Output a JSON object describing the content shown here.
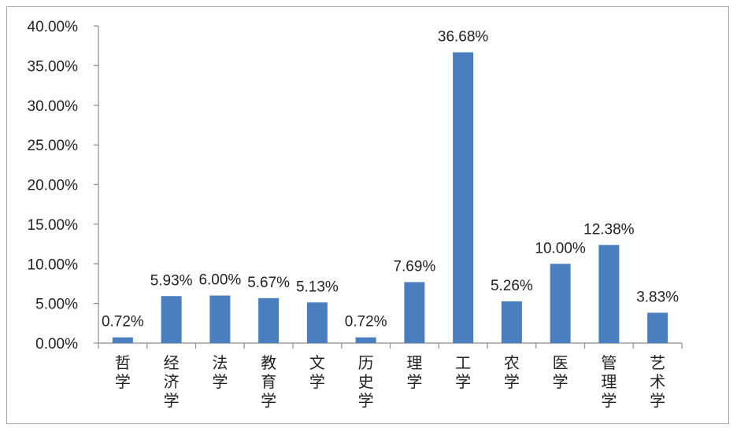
{
  "chart_data": {
    "type": "bar",
    "categories": [
      "哲学",
      "经济学",
      "法学",
      "教育学",
      "文学",
      "历史学",
      "理学",
      "工学",
      "农学",
      "医学",
      "管理学",
      "艺术学"
    ],
    "values": [
      0.72,
      5.93,
      6.0,
      5.67,
      5.13,
      0.72,
      7.69,
      36.68,
      5.26,
      10.0,
      12.38,
      3.83
    ],
    "value_labels": [
      "0.72%",
      "5.93%",
      "6.00%",
      "5.67%",
      "5.13%",
      "0.72%",
      "7.69%",
      "36.68%",
      "5.26%",
      "10.00%",
      "12.38%",
      "3.83%"
    ],
    "ylim": [
      0,
      40
    ],
    "yticks": [
      0,
      5,
      10,
      15,
      20,
      25,
      30,
      35,
      40
    ],
    "ytick_labels": [
      "0.00%",
      "5.00%",
      "10.00%",
      "15.00%",
      "20.00%",
      "25.00%",
      "30.00%",
      "35.00%",
      "40.00%"
    ],
    "title": "",
    "xlabel": "",
    "ylabel": "",
    "grid": false,
    "legend": "none",
    "bar_color": "#4a7ebf"
  }
}
